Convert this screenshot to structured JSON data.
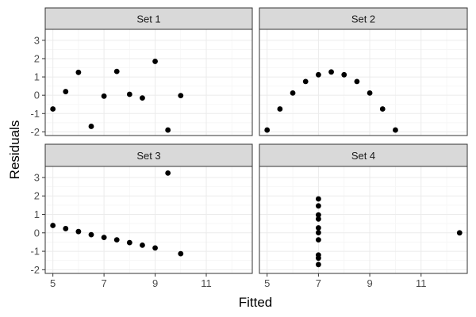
{
  "chart_data": {
    "type": "scatter",
    "xlabel": "Fitted",
    "ylabel": "Residuals",
    "xlim": [
      4.7,
      12.8
    ],
    "ylim": [
      -2.2,
      3.6
    ],
    "x_ticks": [
      5,
      7,
      9,
      11
    ],
    "y_ticks": [
      -2,
      -1,
      0,
      1,
      2,
      3
    ],
    "grid": true,
    "legend": "none",
    "colors": {
      "point": "#000000",
      "strip": "#d9d9d9",
      "grid": "#ebebeb",
      "border": "#333333"
    },
    "panels": [
      {
        "name": "Set 1",
        "x": [
          5.0,
          5.5,
          6.0,
          6.5,
          7.0,
          7.5,
          8.0,
          8.5,
          9.0,
          9.5,
          10.0
        ],
        "y": [
          -0.75,
          0.2,
          1.25,
          -1.7,
          -0.05,
          1.3,
          0.05,
          -0.15,
          1.85,
          -1.9,
          -0.02
        ]
      },
      {
        "name": "Set 2",
        "x": [
          5.0,
          5.5,
          6.0,
          6.5,
          7.0,
          7.5,
          8.0,
          8.5,
          9.0,
          9.5,
          10.0
        ],
        "y": [
          -1.9,
          -0.75,
          0.12,
          0.75,
          1.12,
          1.27,
          1.12,
          0.75,
          0.12,
          -0.75,
          -1.9
        ]
      },
      {
        "name": "Set 3",
        "x": [
          5.0,
          5.5,
          6.0,
          6.5,
          7.0,
          7.5,
          8.0,
          8.5,
          9.0,
          9.5,
          10.0
        ],
        "y": [
          0.4,
          0.23,
          0.07,
          -0.1,
          -0.25,
          -0.38,
          -0.53,
          -0.67,
          -0.82,
          3.24,
          -1.13
        ]
      },
      {
        "name": "Set 4",
        "x": [
          7.0,
          7.0,
          7.0,
          7.0,
          7.0,
          7.0,
          7.0,
          7.0,
          7.0,
          7.0,
          12.5
        ],
        "y": [
          1.84,
          1.46,
          0.97,
          0.75,
          0.27,
          0.01,
          -0.38,
          -1.2,
          -1.37,
          -1.72,
          0.0
        ]
      }
    ]
  }
}
